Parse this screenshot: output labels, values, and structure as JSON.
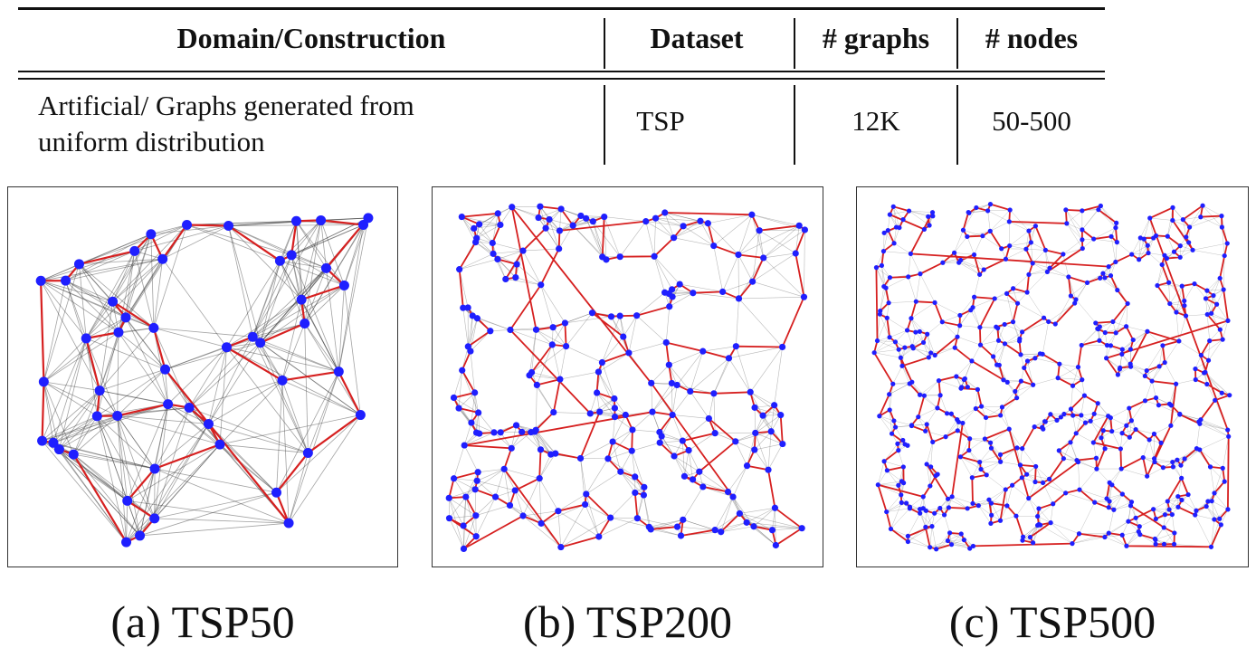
{
  "table": {
    "headers": {
      "domain": "Domain/Construction",
      "dataset": "Dataset",
      "graphs": "# graphs",
      "nodes": "# nodes"
    },
    "row": {
      "domain_line1": "Artificial/ Graphs generated from",
      "domain_line2": "uniform distribution",
      "dataset": "TSP",
      "graphs": "12K",
      "nodes": "50-500"
    }
  },
  "figures": [
    {
      "caption": "(a) TSP50",
      "node_count": 50,
      "node_color": "#1f1fff",
      "tour_color": "#d62020",
      "edge_color": "#333333"
    },
    {
      "caption": "(b) TSP200",
      "node_count": 200,
      "node_color": "#1f1fff",
      "tour_color": "#d62020",
      "edge_color": "#333333"
    },
    {
      "caption": "(c) TSP500",
      "node_count": 500,
      "node_color": "#1f1fff",
      "tour_color": "#d62020",
      "edge_color": "#333333"
    }
  ]
}
